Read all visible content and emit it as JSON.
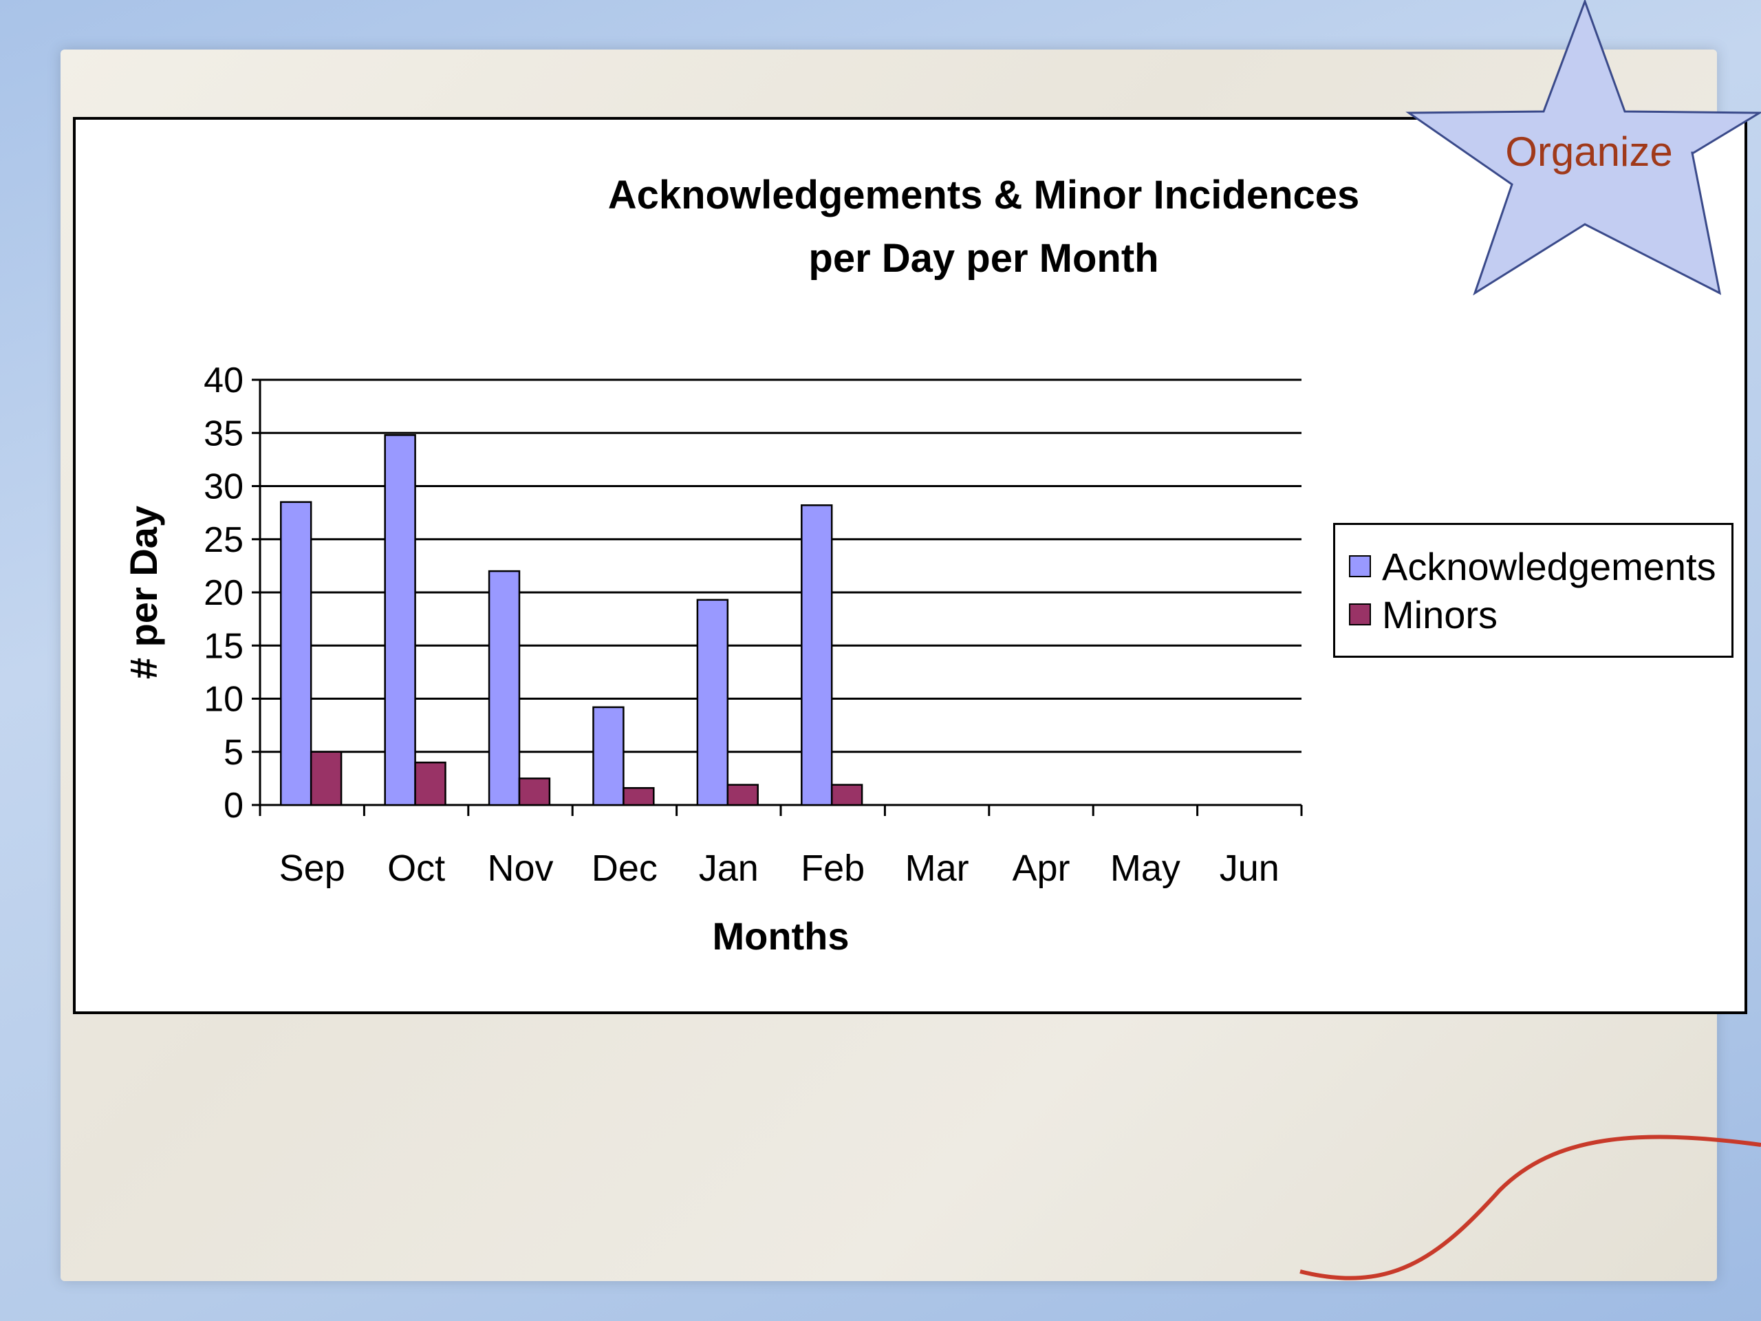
{
  "slide": {
    "star_label": "Organize",
    "colors": {
      "star_fill": "#c3cdf2",
      "star_stroke": "#3a4a8a",
      "star_text": "#a0391a"
    }
  },
  "chart_data": {
    "type": "bar",
    "title": "Acknowledgements & Minor Incidences\nper Day per Month",
    "xlabel": "Months",
    "ylabel": "# per Day",
    "categories": [
      "Sep",
      "Oct",
      "Nov",
      "Dec",
      "Jan",
      "Feb",
      "Mar",
      "Apr",
      "May",
      "Jun"
    ],
    "series": [
      {
        "name": "Acknowledgements",
        "color": "#9999ff",
        "values": [
          28.5,
          34.8,
          22,
          9.2,
          19.3,
          28.2,
          null,
          null,
          null,
          null
        ]
      },
      {
        "name": "Minors",
        "color": "#993366",
        "values": [
          5,
          4,
          2.5,
          1.6,
          1.9,
          1.9,
          null,
          null,
          null,
          null
        ]
      }
    ],
    "ylim": [
      0,
      40
    ],
    "yticks": [
      0,
      5,
      10,
      15,
      20,
      25,
      30,
      35,
      40
    ],
    "grid": true,
    "legend": "right"
  }
}
